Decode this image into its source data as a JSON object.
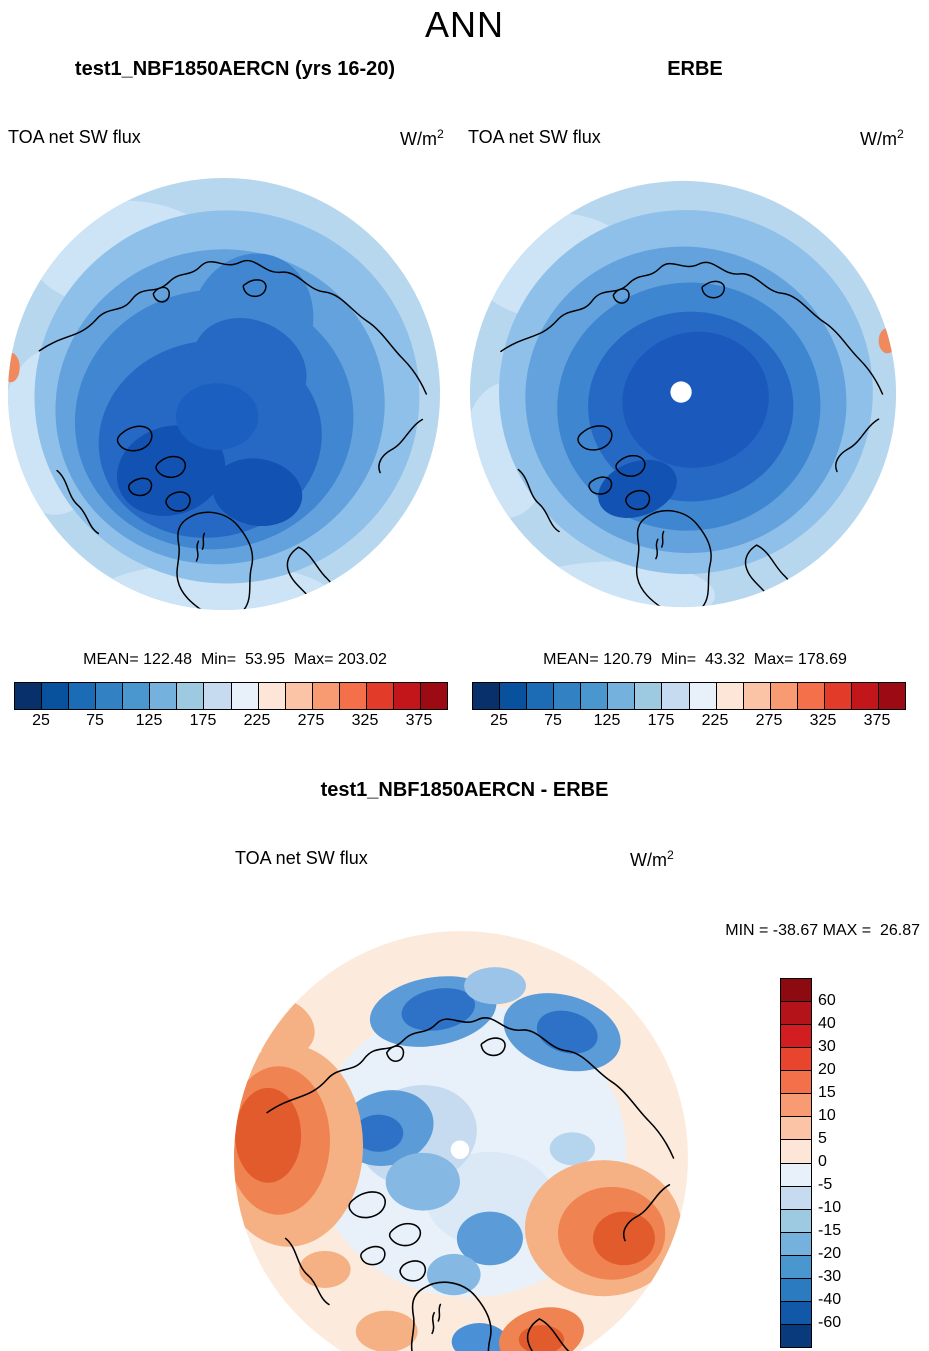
{
  "header": {
    "title": "ANN"
  },
  "panels": {
    "model": {
      "title": "test1_NBF1850AERCN (yrs 16-20)",
      "var_label": "TOA net SW flux",
      "units_base": "W/m",
      "units_exp": "2",
      "stats": "MEAN= 122.48  Min=  53.95  Max= 203.02"
    },
    "obs": {
      "title": "ERBE",
      "var_label": "TOA net SW flux",
      "units_base": "W/m",
      "units_exp": "2",
      "stats": "MEAN= 120.79  Min=  43.32  Max= 178.69"
    },
    "diff": {
      "title": "test1_NBF1850AERCN - ERBE",
      "var_label": "TOA net SW flux",
      "units_base": "W/m",
      "units_exp": "2",
      "minmax": "MIN = -38.67 MAX =  26.87"
    }
  },
  "colorbars": {
    "flux": {
      "colors": [
        "#08306b",
        "#08519c",
        "#1c6bb5",
        "#3181c3",
        "#4a97d0",
        "#74b2dd",
        "#9ecae1",
        "#c6dbef",
        "#e8f1fa",
        "#fde6d7",
        "#fbc4a6",
        "#f89a72",
        "#f3704a",
        "#e23b29",
        "#c3161b",
        "#9c0b13"
      ],
      "ticks": [
        "25",
        "75",
        "125",
        "175",
        "225",
        "275",
        "325",
        "375"
      ]
    },
    "diff": {
      "colors": [
        "#8c0a10",
        "#b41319",
        "#d21e20",
        "#e8452f",
        "#f3704a",
        "#f89a72",
        "#fbc4a6",
        "#fde6d7",
        "#e8f1fa",
        "#c6dbef",
        "#9ecae1",
        "#74b2dd",
        "#4a97d0",
        "#2b7bc0",
        "#1158a8",
        "#083a7c"
      ],
      "labels": [
        "60",
        "40",
        "30",
        "20",
        "15",
        "10",
        "5",
        "0",
        "-5",
        "-10",
        "-15",
        "-20",
        "-30",
        "-40",
        "-60"
      ]
    }
  },
  "chart_data": [
    {
      "type": "heatmap",
      "subtype": "north_polar_stereographic_contour_map",
      "panel": "model",
      "season": "ANN",
      "title": "test1_NBF1850AERCN (yrs 16-20)",
      "variable": "TOA net SW flux",
      "units": "W/m^2",
      "stats": {
        "mean": 122.48,
        "min": 53.95,
        "max": 203.02
      },
      "contour_interval": 25,
      "colorbar_tick_labels": [
        25,
        75,
        125,
        175,
        225,
        275,
        325,
        375
      ],
      "palette": "blue_low_to_red_high",
      "legend_position": "bottom",
      "notes": "values over Arctic are low (blue); lowest values in broad region around pole"
    },
    {
      "type": "heatmap",
      "subtype": "north_polar_stereographic_contour_map",
      "panel": "observations",
      "season": "ANN",
      "title": "ERBE",
      "variable": "TOA net SW flux",
      "units": "W/m^2",
      "stats": {
        "mean": 120.79,
        "min": 43.32,
        "max": 178.69
      },
      "contour_interval": 25,
      "colorbar_tick_labels": [
        25,
        75,
        125,
        175,
        225,
        275,
        325,
        375
      ],
      "palette": "blue_low_to_red_high",
      "legend_position": "bottom",
      "notes": "white dot at pole indicates missing observational data"
    },
    {
      "type": "heatmap",
      "subtype": "north_polar_stereographic_contour_map",
      "panel": "difference",
      "season": "ANN",
      "title": "test1_NBF1850AERCN - ERBE",
      "variable": "TOA net SW flux",
      "units": "W/m^2",
      "stats": {
        "min": -38.67,
        "max": 26.87
      },
      "contour_levels": [
        -60,
        -40,
        -30,
        -20,
        -15,
        -10,
        -5,
        0,
        5,
        10,
        15,
        20,
        30,
        40,
        60
      ],
      "palette": "blue_negative_to_red_positive",
      "legend_position": "right",
      "notes": "negative (blue) biases over parts of Arctic ocean; positive (red) biases near North Pacific and North Atlantic edges"
    }
  ]
}
